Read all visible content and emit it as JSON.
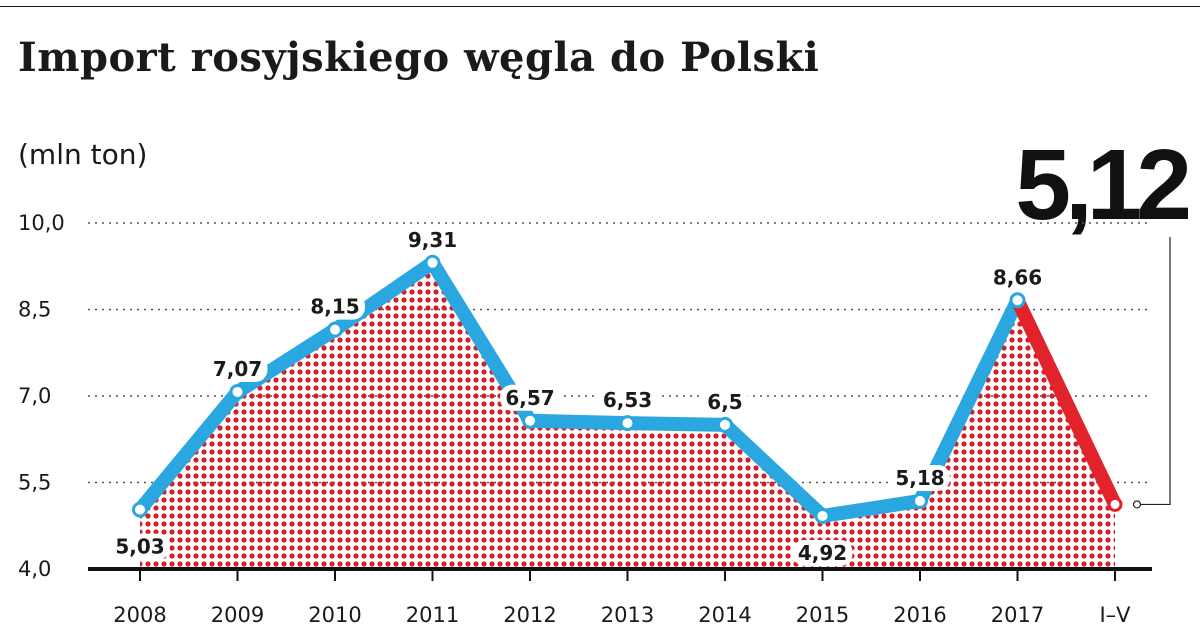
{
  "title": "Import rosyjskiego węgla do Polski",
  "unit": "(mln ton)",
  "highlight_value": "5,12",
  "colors": {
    "main_line": "#2aa7e0",
    "highlight_line": "#e3232c",
    "dots": "#d71d28",
    "highlight_label": "#e3232c"
  },
  "chart_data": {
    "type": "line",
    "title": "Import rosyjskiego węgla do Polski",
    "ylabel": "(mln ton)",
    "xlabel": "",
    "ylim": [
      4.0,
      10.0
    ],
    "y_ticks": [
      "10,0",
      "8,5",
      "7,0",
      "5,5",
      "4,0"
    ],
    "y_tick_values": [
      10.0,
      8.5,
      7.0,
      5.5,
      4.0
    ],
    "grid": "dotted horizontal",
    "area_fill": "red dot pattern",
    "categories": [
      "2008",
      "2009",
      "2010",
      "2011",
      "2012",
      "2013",
      "2014",
      "2015",
      "2016",
      "2017",
      "I–V"
    ],
    "values": [
      5.03,
      7.07,
      8.15,
      9.31,
      6.57,
      6.53,
      6.5,
      4.92,
      5.18,
      8.66,
      5.12
    ],
    "value_labels": [
      "5,03",
      "7,07",
      "8,15",
      "9,31",
      "6,57",
      "6,53",
      "6,5",
      "4,92",
      "5,18",
      "8,66",
      ""
    ],
    "highlighted_last_point": true
  }
}
